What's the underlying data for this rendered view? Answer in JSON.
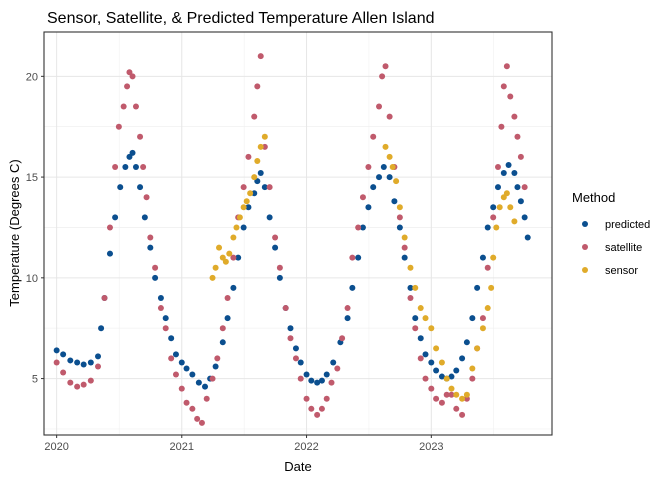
{
  "chart_data": {
    "type": "scatter",
    "title": "Sensor, Satellite, & Predicted Temperature Allen Island",
    "xlabel": "Date",
    "ylabel": "Temperature (Degrees C)",
    "xlim": [
      "2019-11-25",
      "2023-12-20"
    ],
    "ylim": [
      2.2,
      22.2
    ],
    "x_ticks": [
      "2020",
      "2021",
      "2022",
      "2023"
    ],
    "x_tick_dates": [
      "2020-01-01",
      "2021-01-01",
      "2022-01-01",
      "2023-01-01"
    ],
    "y_ticks": [
      5,
      10,
      15,
      20
    ],
    "grid": true,
    "legend": {
      "title": "Method",
      "placement": "right"
    },
    "series": [
      {
        "name": "predicted",
        "color": "#0b4f8f",
        "x": [
          "2020-01-01",
          "2020-01-20",
          "2020-02-10",
          "2020-03-01",
          "2020-03-20",
          "2020-04-10",
          "2020-05-01",
          "2020-05-10",
          "2020-05-20",
          "2020-06-05",
          "2020-06-20",
          "2020-07-05",
          "2020-07-20",
          "2020-08-01",
          "2020-08-10",
          "2020-08-20",
          "2020-09-01",
          "2020-09-15",
          "2020-10-01",
          "2020-10-15",
          "2020-11-01",
          "2020-11-15",
          "2020-12-01",
          "2020-12-15",
          "2021-01-01",
          "2021-01-15",
          "2021-02-01",
          "2021-02-20",
          "2021-03-10",
          "2021-03-25",
          "2021-04-10",
          "2021-05-01",
          "2021-05-15",
          "2021-06-01",
          "2021-06-15",
          "2021-07-01",
          "2021-07-15",
          "2021-08-01",
          "2021-08-10",
          "2021-08-20",
          "2021-09-01",
          "2021-09-15",
          "2021-10-01",
          "2021-10-15",
          "2021-11-01",
          "2021-11-15",
          "2021-12-01",
          "2021-12-15",
          "2022-01-01",
          "2022-01-15",
          "2022-02-01",
          "2022-02-15",
          "2022-03-01",
          "2022-03-20",
          "2022-04-10",
          "2022-05-01",
          "2022-05-15",
          "2022-06-01",
          "2022-06-15",
          "2022-07-01",
          "2022-07-15",
          "2022-08-01",
          "2022-08-15",
          "2022-09-01",
          "2022-09-15",
          "2022-10-01",
          "2022-10-15",
          "2022-11-01",
          "2022-11-15",
          "2022-12-01",
          "2022-12-15",
          "2023-01-01",
          "2023-01-15",
          "2023-02-01",
          "2023-02-15",
          "2023-03-01",
          "2023-03-15",
          "2023-04-01",
          "2023-04-15",
          "2023-05-01",
          "2023-05-15",
          "2023-06-01",
          "2023-06-15",
          "2023-07-01",
          "2023-07-15",
          "2023-08-01",
          "2023-08-15",
          "2023-09-01",
          "2023-09-10",
          "2023-09-20",
          "2023-10-01",
          "2023-10-10"
        ],
        "y": [
          6.4,
          6.2,
          5.9,
          5.8,
          5.7,
          5.8,
          6.1,
          7.5,
          9.0,
          11.2,
          13.0,
          14.5,
          15.5,
          16.0,
          16.2,
          15.5,
          14.5,
          13.0,
          11.5,
          10.0,
          9.0,
          8.0,
          7.0,
          6.2,
          5.8,
          5.5,
          5.2,
          4.8,
          4.6,
          5.0,
          5.6,
          6.8,
          8.0,
          9.5,
          11.0,
          12.5,
          13.5,
          14.2,
          14.8,
          15.2,
          14.5,
          13.0,
          11.5,
          10.0,
          8.5,
          7.5,
          6.5,
          5.8,
          5.2,
          4.9,
          4.8,
          4.9,
          5.2,
          5.8,
          6.8,
          8.0,
          9.5,
          11.0,
          12.5,
          13.5,
          14.5,
          15.0,
          15.5,
          15.0,
          13.8,
          12.5,
          11.0,
          9.5,
          8.0,
          7.0,
          6.2,
          5.8,
          5.4,
          5.1,
          5.0,
          5.1,
          5.4,
          6.0,
          6.8,
          8.0,
          9.5,
          11.0,
          12.5,
          13.5,
          14.5,
          15.2,
          15.6,
          15.2,
          14.5,
          13.8,
          13.0,
          12.0
        ]
      },
      {
        "name": "satellite",
        "color": "#c05a6c",
        "x": [
          "2020-01-01",
          "2020-01-20",
          "2020-02-10",
          "2020-03-01",
          "2020-03-20",
          "2020-04-10",
          "2020-05-01",
          "2020-05-20",
          "2020-06-05",
          "2020-06-20",
          "2020-07-01",
          "2020-07-15",
          "2020-07-25",
          "2020-08-01",
          "2020-08-10",
          "2020-08-20",
          "2020-09-01",
          "2020-09-10",
          "2020-09-20",
          "2020-10-01",
          "2020-10-15",
          "2020-11-01",
          "2020-11-15",
          "2020-12-01",
          "2020-12-15",
          "2021-01-01",
          "2021-01-15",
          "2021-02-01",
          "2021-02-15",
          "2021-03-01",
          "2021-03-15",
          "2021-04-01",
          "2021-04-15",
          "2021-05-01",
          "2021-05-15",
          "2021-06-01",
          "2021-06-15",
          "2021-07-01",
          "2021-07-15",
          "2021-08-01",
          "2021-08-10",
          "2021-08-20",
          "2021-09-01",
          "2021-09-15",
          "2021-10-01",
          "2021-10-15",
          "2021-11-01",
          "2021-11-15",
          "2021-12-01",
          "2021-12-15",
          "2022-01-01",
          "2022-01-15",
          "2022-02-01",
          "2022-02-15",
          "2022-03-01",
          "2022-03-15",
          "2022-04-01",
          "2022-04-15",
          "2022-05-01",
          "2022-05-15",
          "2022-06-01",
          "2022-06-15",
          "2022-07-01",
          "2022-07-15",
          "2022-08-01",
          "2022-08-10",
          "2022-08-20",
          "2022-09-01",
          "2022-09-15",
          "2022-10-01",
          "2022-10-15",
          "2022-11-01",
          "2022-11-15",
          "2022-12-01",
          "2022-12-15",
          "2023-01-01",
          "2023-01-15",
          "2023-02-01",
          "2023-02-15",
          "2023-03-01",
          "2023-03-15",
          "2023-04-01",
          "2023-04-15",
          "2023-05-01",
          "2023-05-15",
          "2023-06-01",
          "2023-06-15",
          "2023-07-01",
          "2023-07-15",
          "2023-07-25",
          "2023-08-01",
          "2023-08-10",
          "2023-08-20",
          "2023-09-01",
          "2023-09-10",
          "2023-09-20",
          "2023-10-01"
        ],
        "y": [
          5.8,
          5.3,
          4.8,
          4.6,
          4.7,
          4.9,
          5.6,
          9.0,
          12.5,
          15.5,
          17.5,
          18.5,
          19.5,
          20.2,
          20.0,
          18.5,
          17.0,
          15.5,
          14.0,
          12.0,
          10.5,
          8.5,
          7.5,
          6.0,
          5.2,
          4.5,
          3.8,
          3.5,
          3.0,
          2.8,
          4.0,
          5.0,
          6.0,
          7.5,
          9.0,
          11.0,
          13.0,
          14.5,
          16.0,
          18.0,
          19.5,
          21.0,
          16.5,
          14.5,
          12.0,
          10.5,
          8.5,
          7.0,
          6.0,
          5.0,
          4.0,
          3.5,
          3.2,
          3.5,
          4.0,
          4.8,
          5.5,
          7.0,
          8.5,
          11.0,
          12.5,
          14.0,
          15.5,
          17.0,
          18.5,
          20.0,
          20.5,
          18.0,
          15.5,
          13.0,
          11.5,
          9.0,
          7.5,
          6.0,
          5.0,
          4.5,
          4.0,
          3.8,
          4.2,
          4.2,
          3.5,
          3.2,
          4.0,
          5.0,
          6.5,
          8.0,
          10.5,
          13.0,
          15.5,
          17.5,
          19.5,
          20.5,
          19.0,
          18.0,
          17.0,
          16.0,
          14.5
        ]
      },
      {
        "name": "sensor",
        "color": "#e0ab2a",
        "x": [
          "2021-04-01",
          "2021-04-10",
          "2021-04-20",
          "2021-05-01",
          "2021-05-10",
          "2021-05-20",
          "2021-06-01",
          "2021-06-10",
          "2021-06-20",
          "2021-07-01",
          "2021-07-10",
          "2021-07-20",
          "2021-08-01",
          "2021-08-10",
          "2021-08-20",
          "2021-09-01",
          "2022-08-20",
          "2022-09-01",
          "2022-09-10",
          "2022-09-20",
          "2022-10-01",
          "2022-10-15",
          "2022-11-01",
          "2022-11-15",
          "2022-12-01",
          "2022-12-15",
          "2023-01-01",
          "2023-01-15",
          "2023-02-01",
          "2023-02-15",
          "2023-03-01",
          "2023-03-15",
          "2023-04-01",
          "2023-04-15",
          "2023-05-01",
          "2023-05-15",
          "2023-06-01",
          "2023-06-15",
          "2023-06-25",
          "2023-07-01",
          "2023-07-10",
          "2023-07-20",
          "2023-08-01",
          "2023-08-10",
          "2023-08-20",
          "2023-09-01"
        ],
        "y": [
          10.0,
          10.5,
          11.5,
          11.0,
          10.8,
          11.2,
          12.0,
          12.5,
          13.0,
          13.5,
          13.8,
          14.2,
          15.0,
          15.8,
          16.5,
          17.0,
          16.5,
          16.0,
          15.5,
          14.8,
          13.5,
          12.0,
          10.5,
          9.5,
          8.5,
          8.0,
          7.5,
          6.5,
          5.8,
          5.0,
          4.5,
          4.2,
          4.0,
          4.2,
          5.5,
          6.5,
          7.5,
          8.5,
          9.5,
          11.0,
          12.5,
          13.5,
          14.0,
          14.2,
          13.5,
          12.8
        ]
      }
    ]
  }
}
